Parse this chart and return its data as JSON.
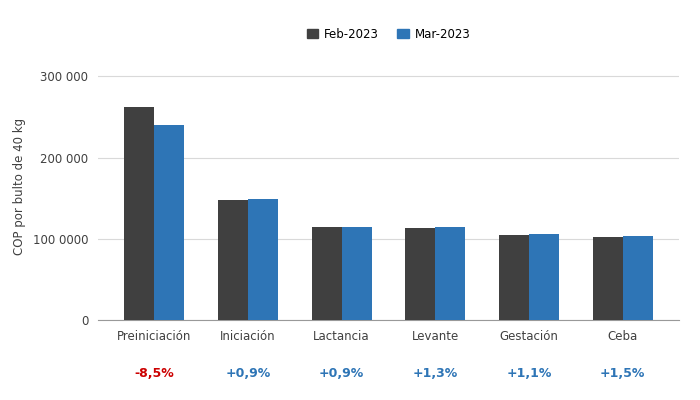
{
  "categories": [
    "Preiniciación",
    "Iniciación",
    "Lactancia",
    "Levante",
    "Gestación",
    "Ceba"
  ],
  "feb_values": [
    262000,
    148000,
    114000,
    113000,
    105000,
    102000
  ],
  "mar_values": [
    239700,
    149320,
    115026,
    114469,
    106155,
    103530
  ],
  "pct_changes": [
    "-8,5%",
    "+0,9%",
    "+0,9%",
    "+1,3%",
    "+1,1%",
    "+1,5%"
  ],
  "pct_colors": [
    "#cc0000",
    "#2e75b6",
    "#2e75b6",
    "#2e75b6",
    "#2e75b6",
    "#2e75b6"
  ],
  "feb_color": "#404040",
  "mar_color": "#2e75b6",
  "ylabel": "COP por bulto de 40 kg",
  "legend_feb": "Feb-2023",
  "legend_mar": "Mar-2023",
  "ylim": [
    0,
    330000
  ],
  "yticks": [
    0,
    100000,
    200000,
    300000
  ],
  "background_color": "#ffffff",
  "grid_color": "#d9d9d9"
}
